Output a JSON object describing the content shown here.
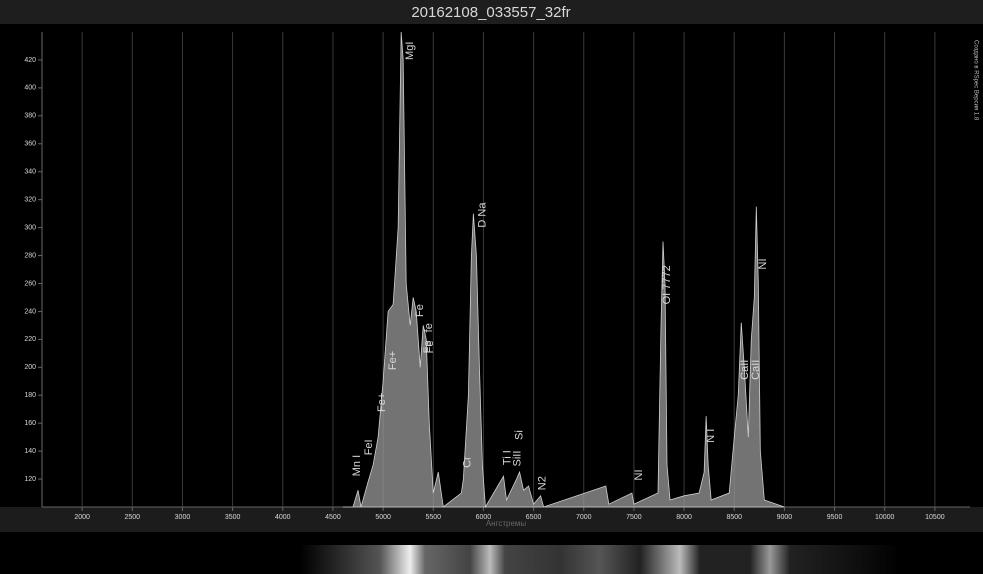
{
  "chart_data": {
    "type": "area",
    "title": "20162108_033557_32fr",
    "x_label": "Ангстремы",
    "watermark": "Создано в RSpec Версия 1.8",
    "color": "#9a9a9a",
    "grid": true,
    "x": [
      4600,
      4700,
      4750,
      4780,
      4850,
      4900,
      4950,
      5000,
      5050,
      5100,
      5150,
      5180,
      5200,
      5230,
      5270,
      5300,
      5330,
      5370,
      5400,
      5430,
      5460,
      5500,
      5550,
      5600,
      5780,
      5800,
      5850,
      5880,
      5900,
      5930,
      5960,
      5990,
      6020,
      6200,
      6230,
      6330,
      6360,
      6400,
      6450,
      6500,
      6570,
      6600,
      7220,
      7250,
      7480,
      7500,
      7740,
      7770,
      7790,
      7810,
      7830,
      7860,
      8000,
      8150,
      8200,
      8220,
      8240,
      8270,
      8450,
      8500,
      8540,
      8570,
      8600,
      8640,
      8670,
      8700,
      8720,
      8740,
      8760,
      8800,
      9000
    ],
    "values": [
      100,
      100,
      112,
      100,
      118,
      130,
      150,
      190,
      240,
      245,
      300,
      440,
      420,
      260,
      230,
      250,
      240,
      200,
      230,
      220,
      160,
      110,
      125,
      100,
      110,
      120,
      180,
      280,
      310,
      280,
      200,
      130,
      100,
      122,
      105,
      120,
      125,
      112,
      115,
      102,
      108,
      100,
      115,
      102,
      110,
      102,
      110,
      230,
      290,
      260,
      130,
      105,
      108,
      110,
      125,
      165,
      130,
      105,
      110,
      150,
      180,
      232,
      200,
      150,
      220,
      250,
      315,
      260,
      140,
      105,
      100
    ],
    "xlim": [
      1600,
      10850
    ],
    "ylim": [
      100,
      440
    ],
    "xticks": [
      2000,
      2500,
      3000,
      3500,
      4000,
      4500,
      5000,
      5500,
      6000,
      6500,
      7000,
      7500,
      8000,
      8500,
      9000,
      9500,
      10000,
      10500
    ],
    "yticks": [
      120,
      140,
      160,
      180,
      200,
      220,
      240,
      260,
      280,
      300,
      320,
      340,
      360,
      380,
      400,
      420
    ],
    "annotations": [
      {
        "text": "Mn I",
        "x": 4740,
        "y": 122
      },
      {
        "text": "FeI",
        "x": 4860,
        "y": 137
      },
      {
        "text": "Fe+",
        "x": 4990,
        "y": 168
      },
      {
        "text": "Fe+",
        "x": 5100,
        "y": 198
      },
      {
        "text": "MgI",
        "x": 5270,
        "y": 420
      },
      {
        "text": "Fe",
        "x": 5370,
        "y": 236
      },
      {
        "text": "Fe",
        "x": 5450,
        "y": 210
      },
      {
        "text": "Fe",
        "x": 5470,
        "y": 210
      },
      {
        "text": "fe",
        "x": 5460,
        "y": 225
      },
      {
        "text": "Cr",
        "x": 5840,
        "y": 128
      },
      {
        "text": "D Na",
        "x": 5990,
        "y": 300
      },
      {
        "text": "Ti I",
        "x": 6240,
        "y": 130
      },
      {
        "text": "SiII",
        "x": 6340,
        "y": 129
      },
      {
        "text": "Si",
        "x": 6360,
        "y": 148
      },
      {
        "text": "N2",
        "x": 6590,
        "y": 112
      },
      {
        "text": "NI",
        "x": 7550,
        "y": 119
      },
      {
        "text": "OI 7772",
        "x": 7830,
        "y": 245
      },
      {
        "text": "N I",
        "x": 8270,
        "y": 146
      },
      {
        "text": "CaII",
        "x": 8610,
        "y": 191
      },
      {
        "text": "CaII",
        "x": 8720,
        "y": 191
      },
      {
        "text": "NI",
        "x": 8790,
        "y": 270
      }
    ]
  }
}
